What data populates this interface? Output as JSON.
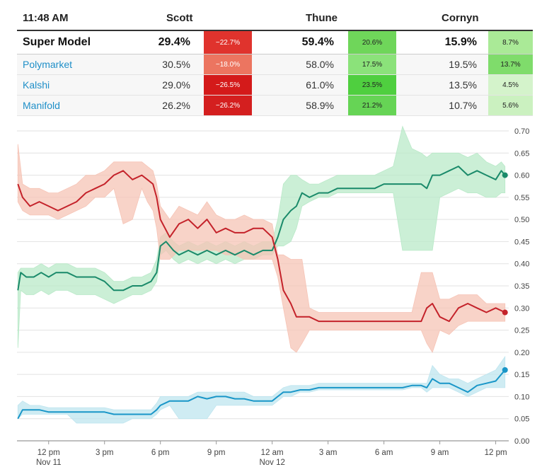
{
  "header": {
    "time": "11:48 AM",
    "col1": "Scott",
    "col2": "Thune",
    "col3": "Cornyn"
  },
  "rows": [
    {
      "label": "Super Model",
      "scott": "29.4%",
      "scott_chg": "−22.7%",
      "thune": "59.4%",
      "thune_chg": "20.6%",
      "cornyn": "15.9%",
      "cornyn_chg": "8.7%"
    },
    {
      "label": "Polymarket",
      "scott": "30.5%",
      "scott_chg": "−18.0%",
      "thune": "58.0%",
      "thune_chg": "17.5%",
      "cornyn": "19.5%",
      "cornyn_chg": "13.7%"
    },
    {
      "label": "Kalshi",
      "scott": "29.0%",
      "scott_chg": "−26.5%",
      "thune": "61.0%",
      "thune_chg": "23.5%",
      "cornyn": "13.5%",
      "cornyn_chg": "4.5%"
    },
    {
      "label": "Manifold",
      "scott": "26.2%",
      "scott_chg": "−26.2%",
      "thune": "58.9%",
      "thune_chg": "21.2%",
      "cornyn": "10.7%",
      "cornyn_chg": "5.6%"
    }
  ],
  "chg_colors": {
    "scott": [
      "#e0332d",
      "#ec7560",
      "#d41a1a",
      "#d41f1f"
    ],
    "thune": [
      "#6fd65a",
      "#8be27a",
      "#4fcf3f",
      "#66d455"
    ],
    "cornyn": [
      "#aaea97",
      "#7fdc6b",
      "#d4f3cb",
      "#cbf1c0"
    ]
  },
  "chg_text_white": {
    "scott": [
      true,
      true,
      true,
      true
    ],
    "thune": [
      false,
      false,
      false,
      false
    ],
    "cornyn": [
      false,
      false,
      false,
      false
    ]
  },
  "chart_data": {
    "type": "line",
    "x_unit": "hours since Nov 11 10:00 AM",
    "x_ticks": [
      {
        "x": 2,
        "label": "12 pm",
        "sub": "Nov 11"
      },
      {
        "x": 5,
        "label": "3 pm",
        "sub": ""
      },
      {
        "x": 8,
        "label": "6 pm",
        "sub": ""
      },
      {
        "x": 11,
        "label": "9 pm",
        "sub": ""
      },
      {
        "x": 14,
        "label": "12 am",
        "sub": "Nov 12"
      },
      {
        "x": 17,
        "label": "3 am",
        "sub": ""
      },
      {
        "x": 20,
        "label": "6 am",
        "sub": ""
      },
      {
        "x": 23,
        "label": "9 am",
        "sub": ""
      },
      {
        "x": 26,
        "label": "12 pm",
        "sub": ""
      }
    ],
    "ylim": [
      0,
      0.7
    ],
    "yticks": [
      "0.00",
      "0.05",
      "0.10",
      "0.15",
      "0.20",
      "0.25",
      "0.30",
      "0.35",
      "0.40",
      "0.45",
      "0.50",
      "0.55",
      "0.60",
      "0.65",
      "0.70"
    ],
    "xlim": [
      0.3,
      26.7
    ],
    "series": [
      {
        "name": "Thune",
        "color": "#1a8a6a",
        "band_color": "#b9e9c8",
        "x": [
          0.35,
          0.5,
          0.8,
          1.2,
          1.6,
          2.0,
          2.4,
          2.7,
          3.0,
          3.5,
          4.0,
          4.5,
          5.0,
          5.5,
          6.0,
          6.5,
          7.0,
          7.5,
          7.8,
          8.0,
          8.3,
          8.7,
          9.0,
          9.5,
          10.0,
          10.5,
          11.0,
          11.5,
          12.0,
          12.5,
          13.0,
          13.5,
          14.0,
          14.3,
          14.6,
          15.0,
          15.3,
          15.6,
          16.0,
          16.5,
          17.0,
          17.5,
          18.0,
          18.5,
          19.0,
          19.5,
          20.0,
          20.5,
          21.0,
          21.5,
          22.0,
          22.3,
          22.6,
          23.0,
          23.5,
          24.0,
          24.5,
          25.0,
          25.5,
          26.0,
          26.3,
          26.5
        ],
        "y": [
          0.34,
          0.38,
          0.37,
          0.37,
          0.38,
          0.37,
          0.38,
          0.38,
          0.38,
          0.37,
          0.37,
          0.37,
          0.36,
          0.34,
          0.34,
          0.35,
          0.35,
          0.36,
          0.38,
          0.44,
          0.45,
          0.43,
          0.42,
          0.43,
          0.42,
          0.43,
          0.42,
          0.43,
          0.42,
          0.43,
          0.42,
          0.43,
          0.43,
          0.46,
          0.5,
          0.52,
          0.53,
          0.56,
          0.55,
          0.56,
          0.56,
          0.57,
          0.57,
          0.57,
          0.57,
          0.57,
          0.58,
          0.58,
          0.58,
          0.58,
          0.58,
          0.57,
          0.6,
          0.6,
          0.61,
          0.62,
          0.6,
          0.61,
          0.6,
          0.59,
          0.61,
          0.6
        ],
        "lo": [
          0.21,
          0.34,
          0.33,
          0.33,
          0.34,
          0.33,
          0.34,
          0.34,
          0.34,
          0.33,
          0.33,
          0.33,
          0.32,
          0.31,
          0.32,
          0.33,
          0.33,
          0.34,
          0.36,
          0.42,
          0.43,
          0.41,
          0.4,
          0.41,
          0.4,
          0.41,
          0.4,
          0.41,
          0.4,
          0.41,
          0.41,
          0.42,
          0.42,
          0.44,
          0.44,
          0.45,
          0.48,
          0.53,
          0.54,
          0.55,
          0.55,
          0.56,
          0.56,
          0.56,
          0.56,
          0.56,
          0.56,
          0.56,
          0.43,
          0.43,
          0.43,
          0.43,
          0.43,
          0.55,
          0.56,
          0.57,
          0.56,
          0.56,
          0.55,
          0.55,
          0.56,
          0.56
        ],
        "hi": [
          0.38,
          0.39,
          0.39,
          0.39,
          0.4,
          0.39,
          0.4,
          0.4,
          0.4,
          0.39,
          0.39,
          0.39,
          0.38,
          0.36,
          0.36,
          0.37,
          0.37,
          0.38,
          0.41,
          0.46,
          0.47,
          0.45,
          0.44,
          0.45,
          0.44,
          0.45,
          0.44,
          0.45,
          0.44,
          0.45,
          0.44,
          0.45,
          0.45,
          0.5,
          0.58,
          0.6,
          0.6,
          0.59,
          0.58,
          0.58,
          0.59,
          0.6,
          0.6,
          0.6,
          0.6,
          0.6,
          0.61,
          0.62,
          0.71,
          0.66,
          0.65,
          0.64,
          0.65,
          0.65,
          0.65,
          0.65,
          0.64,
          0.65,
          0.63,
          0.62,
          0.63,
          0.62
        ]
      },
      {
        "name": "Scott",
        "color": "#c4222a",
        "band_color": "#f6c4b6",
        "x": [
          0.35,
          0.6,
          1.0,
          1.5,
          2.0,
          2.5,
          3.0,
          3.5,
          4.0,
          4.5,
          5.0,
          5.5,
          6.0,
          6.5,
          7.0,
          7.3,
          7.6,
          7.8,
          8.0,
          8.5,
          9.0,
          9.5,
          10.0,
          10.5,
          11.0,
          11.5,
          12.0,
          12.5,
          13.0,
          13.5,
          14.0,
          14.3,
          14.6,
          15.0,
          15.3,
          15.6,
          16.0,
          16.5,
          17.0,
          17.5,
          18.0,
          18.5,
          19.0,
          19.5,
          20.0,
          20.5,
          21.0,
          21.5,
          22.0,
          22.3,
          22.6,
          23.0,
          23.5,
          24.0,
          24.5,
          25.0,
          25.5,
          26.0,
          26.5
        ],
        "y": [
          0.58,
          0.55,
          0.53,
          0.54,
          0.53,
          0.52,
          0.53,
          0.54,
          0.56,
          0.57,
          0.58,
          0.6,
          0.61,
          0.59,
          0.6,
          0.59,
          0.58,
          0.55,
          0.5,
          0.46,
          0.49,
          0.5,
          0.48,
          0.5,
          0.47,
          0.48,
          0.47,
          0.47,
          0.48,
          0.48,
          0.46,
          0.41,
          0.34,
          0.31,
          0.28,
          0.28,
          0.28,
          0.27,
          0.27,
          0.27,
          0.27,
          0.27,
          0.27,
          0.27,
          0.27,
          0.27,
          0.27,
          0.27,
          0.27,
          0.3,
          0.31,
          0.28,
          0.27,
          0.3,
          0.31,
          0.3,
          0.29,
          0.3,
          0.29
        ],
        "lo": [
          0.54,
          0.52,
          0.51,
          0.51,
          0.51,
          0.5,
          0.51,
          0.52,
          0.53,
          0.55,
          0.55,
          0.57,
          0.49,
          0.5,
          0.57,
          0.54,
          0.52,
          0.48,
          0.41,
          0.41,
          0.43,
          0.43,
          0.43,
          0.43,
          0.43,
          0.42,
          0.42,
          0.41,
          0.41,
          0.41,
          0.41,
          0.37,
          0.3,
          0.21,
          0.2,
          0.22,
          0.25,
          0.25,
          0.25,
          0.25,
          0.25,
          0.25,
          0.25,
          0.25,
          0.25,
          0.25,
          0.25,
          0.25,
          0.25,
          0.22,
          0.2,
          0.25,
          0.24,
          0.26,
          0.27,
          0.27,
          0.27,
          0.27,
          0.27
        ],
        "hi": [
          0.67,
          0.58,
          0.57,
          0.57,
          0.56,
          0.56,
          0.57,
          0.58,
          0.6,
          0.6,
          0.61,
          0.63,
          0.63,
          0.63,
          0.63,
          0.62,
          0.61,
          0.58,
          0.53,
          0.5,
          0.53,
          0.52,
          0.51,
          0.54,
          0.51,
          0.5,
          0.5,
          0.51,
          0.5,
          0.5,
          0.49,
          0.42,
          0.42,
          0.41,
          0.41,
          0.41,
          0.3,
          0.29,
          0.29,
          0.29,
          0.29,
          0.29,
          0.29,
          0.29,
          0.29,
          0.29,
          0.29,
          0.29,
          0.38,
          0.38,
          0.38,
          0.32,
          0.32,
          0.33,
          0.33,
          0.33,
          0.31,
          0.31,
          0.31
        ]
      },
      {
        "name": "Cornyn",
        "color": "#1996c8",
        "band_color": "#bfe5ef",
        "x": [
          0.35,
          0.6,
          1.0,
          1.5,
          2.0,
          2.5,
          3.0,
          3.5,
          4.0,
          4.5,
          5.0,
          5.5,
          6.0,
          6.5,
          7.0,
          7.5,
          7.8,
          8.0,
          8.5,
          9.0,
          9.5,
          10.0,
          10.5,
          11.0,
          11.5,
          12.0,
          12.5,
          13.0,
          13.5,
          14.0,
          14.3,
          14.6,
          15.0,
          15.5,
          16.0,
          16.5,
          17.0,
          17.5,
          18.0,
          18.5,
          19.0,
          19.5,
          20.0,
          20.5,
          21.0,
          21.5,
          22.0,
          22.3,
          22.6,
          23.0,
          23.5,
          24.0,
          24.5,
          25.0,
          25.5,
          26.0,
          26.5
        ],
        "y": [
          0.05,
          0.07,
          0.07,
          0.07,
          0.065,
          0.065,
          0.065,
          0.065,
          0.065,
          0.065,
          0.065,
          0.06,
          0.06,
          0.06,
          0.06,
          0.06,
          0.07,
          0.08,
          0.09,
          0.09,
          0.09,
          0.1,
          0.095,
          0.1,
          0.1,
          0.095,
          0.095,
          0.09,
          0.09,
          0.09,
          0.1,
          0.11,
          0.11,
          0.115,
          0.115,
          0.12,
          0.12,
          0.12,
          0.12,
          0.12,
          0.12,
          0.12,
          0.12,
          0.12,
          0.12,
          0.125,
          0.125,
          0.12,
          0.14,
          0.13,
          0.13,
          0.12,
          0.11,
          0.125,
          0.13,
          0.135,
          0.16
        ],
        "lo": [
          0.05,
          0.06,
          0.06,
          0.06,
          0.06,
          0.06,
          0.06,
          0.04,
          0.04,
          0.04,
          0.04,
          0.04,
          0.04,
          0.05,
          0.05,
          0.05,
          0.06,
          0.07,
          0.08,
          0.05,
          0.05,
          0.05,
          0.05,
          0.08,
          0.08,
          0.08,
          0.08,
          0.08,
          0.08,
          0.08,
          0.09,
          0.1,
          0.1,
          0.11,
          0.11,
          0.115,
          0.115,
          0.115,
          0.115,
          0.115,
          0.115,
          0.115,
          0.115,
          0.115,
          0.115,
          0.12,
          0.12,
          0.11,
          0.12,
          0.12,
          0.12,
          0.11,
          0.1,
          0.11,
          0.12,
          0.12,
          0.12
        ],
        "hi": [
          0.08,
          0.09,
          0.08,
          0.08,
          0.075,
          0.075,
          0.075,
          0.075,
          0.075,
          0.075,
          0.075,
          0.07,
          0.07,
          0.07,
          0.07,
          0.07,
          0.085,
          0.1,
          0.1,
          0.1,
          0.1,
          0.11,
          0.11,
          0.11,
          0.11,
          0.11,
          0.11,
          0.1,
          0.1,
          0.1,
          0.11,
          0.12,
          0.125,
          0.125,
          0.125,
          0.13,
          0.13,
          0.13,
          0.13,
          0.13,
          0.13,
          0.13,
          0.13,
          0.13,
          0.13,
          0.13,
          0.13,
          0.13,
          0.17,
          0.15,
          0.14,
          0.14,
          0.13,
          0.14,
          0.15,
          0.16,
          0.19
        ]
      }
    ]
  }
}
